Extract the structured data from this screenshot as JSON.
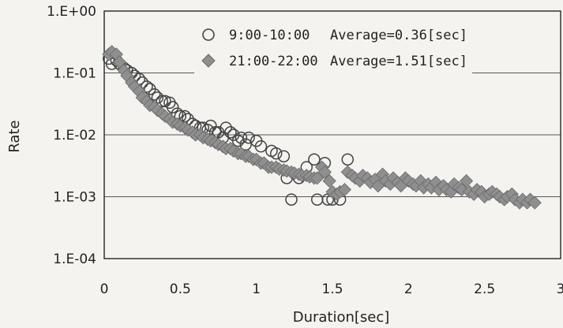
{
  "chart_data": {
    "type": "scatter",
    "title": "",
    "xlabel": "Duration[sec]",
    "ylabel": "Rate",
    "xlim": [
      0,
      3
    ],
    "ylim": [
      0.0001,
      1
    ],
    "yscale": "log",
    "grid": "horizontal",
    "legend_position": "top-right",
    "x_ticks": [
      {
        "value": 0,
        "label": "0"
      },
      {
        "value": 0.5,
        "label": "0.5"
      },
      {
        "value": 1,
        "label": "1"
      },
      {
        "value": 1.5,
        "label": "1.5"
      },
      {
        "value": 2,
        "label": "2"
      },
      {
        "value": 2.5,
        "label": "2.5"
      },
      {
        "value": 3,
        "label": "3"
      }
    ],
    "y_ticks": [
      {
        "value": 1,
        "label": "1.E+00"
      },
      {
        "value": 0.1,
        "label": "1.E-01"
      },
      {
        "value": 0.01,
        "label": "1.E-02"
      },
      {
        "value": 0.001,
        "label": "1.E-03"
      },
      {
        "value": 0.0001,
        "label": "1.E-04"
      }
    ],
    "series": [
      {
        "name": "9:00-10:00",
        "annotation": "Average=0.36[sec]",
        "marker": "circle",
        "color": "#444444",
        "points": [
          [
            0.03,
            0.17
          ],
          [
            0.05,
            0.14
          ],
          [
            0.08,
            0.16
          ],
          [
            0.1,
            0.14
          ],
          [
            0.13,
            0.12
          ],
          [
            0.15,
            0.11
          ],
          [
            0.18,
            0.1
          ],
          [
            0.2,
            0.09
          ],
          [
            0.23,
            0.08
          ],
          [
            0.25,
            0.07
          ],
          [
            0.28,
            0.06
          ],
          [
            0.3,
            0.055
          ],
          [
            0.33,
            0.045
          ],
          [
            0.35,
            0.04
          ],
          [
            0.38,
            0.035
          ],
          [
            0.4,
            0.035
          ],
          [
            0.43,
            0.033
          ],
          [
            0.45,
            0.028
          ],
          [
            0.48,
            0.022
          ],
          [
            0.5,
            0.02
          ],
          [
            0.53,
            0.02
          ],
          [
            0.55,
            0.018
          ],
          [
            0.58,
            0.015
          ],
          [
            0.6,
            0.014
          ],
          [
            0.63,
            0.013
          ],
          [
            0.65,
            0.013
          ],
          [
            0.68,
            0.012
          ],
          [
            0.7,
            0.014
          ],
          [
            0.73,
            0.011
          ],
          [
            0.75,
            0.011
          ],
          [
            0.78,
            0.009
          ],
          [
            0.8,
            0.013
          ],
          [
            0.83,
            0.011
          ],
          [
            0.85,
            0.01
          ],
          [
            0.88,
            0.008
          ],
          [
            0.9,
            0.009
          ],
          [
            0.93,
            0.007
          ],
          [
            0.95,
            0.009
          ],
          [
            1.0,
            0.008
          ],
          [
            1.03,
            0.0065
          ],
          [
            1.1,
            0.0055
          ],
          [
            1.13,
            0.005
          ],
          [
            1.18,
            0.0045
          ],
          [
            1.2,
            0.002
          ],
          [
            1.23,
            0.0009
          ],
          [
            1.28,
            0.002
          ],
          [
            1.33,
            0.003
          ],
          [
            1.38,
            0.004
          ],
          [
            1.4,
            0.0009
          ],
          [
            1.45,
            0.0035
          ],
          [
            1.47,
            0.0009
          ],
          [
            1.5,
            0.0009
          ],
          [
            1.55,
            0.0009
          ],
          [
            1.6,
            0.004
          ]
        ]
      },
      {
        "name": "21:00-22:00",
        "annotation": "Average=1.51[sec]",
        "marker": "diamond",
        "color": "#8f8f8f",
        "points": [
          [
            0.03,
            0.2
          ],
          [
            0.05,
            0.22
          ],
          [
            0.08,
            0.2
          ],
          [
            0.1,
            0.15
          ],
          [
            0.13,
            0.11
          ],
          [
            0.15,
            0.09
          ],
          [
            0.18,
            0.07
          ],
          [
            0.2,
            0.06
          ],
          [
            0.23,
            0.05
          ],
          [
            0.25,
            0.04
          ],
          [
            0.28,
            0.035
          ],
          [
            0.3,
            0.03
          ],
          [
            0.33,
            0.028
          ],
          [
            0.35,
            0.025
          ],
          [
            0.38,
            0.022
          ],
          [
            0.4,
            0.02
          ],
          [
            0.43,
            0.018
          ],
          [
            0.45,
            0.016
          ],
          [
            0.48,
            0.015
          ],
          [
            0.5,
            0.014
          ],
          [
            0.53,
            0.013
          ],
          [
            0.55,
            0.012
          ],
          [
            0.58,
            0.011
          ],
          [
            0.6,
            0.01
          ],
          [
            0.63,
            0.01
          ],
          [
            0.65,
            0.009
          ],
          [
            0.68,
            0.0085
          ],
          [
            0.7,
            0.008
          ],
          [
            0.73,
            0.0075
          ],
          [
            0.75,
            0.007
          ],
          [
            0.78,
            0.0065
          ],
          [
            0.8,
            0.006
          ],
          [
            0.83,
            0.006
          ],
          [
            0.85,
            0.0055
          ],
          [
            0.88,
            0.005
          ],
          [
            0.9,
            0.005
          ],
          [
            0.93,
            0.0045
          ],
          [
            0.95,
            0.0045
          ],
          [
            0.98,
            0.004
          ],
          [
            1.0,
            0.004
          ],
          [
            1.03,
            0.0035
          ],
          [
            1.05,
            0.0035
          ],
          [
            1.08,
            0.003
          ],
          [
            1.1,
            0.003
          ],
          [
            1.13,
            0.003
          ],
          [
            1.15,
            0.0028
          ],
          [
            1.18,
            0.0027
          ],
          [
            1.2,
            0.0026
          ],
          [
            1.23,
            0.0025
          ],
          [
            1.25,
            0.0024
          ],
          [
            1.28,
            0.0023
          ],
          [
            1.3,
            0.0022
          ],
          [
            1.33,
            0.0022
          ],
          [
            1.35,
            0.0021
          ],
          [
            1.38,
            0.002
          ],
          [
            1.4,
            0.002
          ],
          [
            1.43,
            0.003
          ],
          [
            1.45,
            0.0025
          ],
          [
            1.48,
            0.0018
          ],
          [
            1.5,
            0.0012
          ],
          [
            1.53,
            0.0011
          ],
          [
            1.55,
            0.0012
          ],
          [
            1.58,
            0.0013
          ],
          [
            1.6,
            0.0025
          ],
          [
            1.63,
            0.0022
          ],
          [
            1.65,
            0.002
          ],
          [
            1.68,
            0.0018
          ],
          [
            1.7,
            0.0022
          ],
          [
            1.73,
            0.002
          ],
          [
            1.75,
            0.0017
          ],
          [
            1.78,
            0.0019
          ],
          [
            1.8,
            0.0015
          ],
          [
            1.83,
            0.0023
          ],
          [
            1.85,
            0.0018
          ],
          [
            1.88,
            0.0016
          ],
          [
            1.9,
            0.002
          ],
          [
            1.93,
            0.0017
          ],
          [
            1.95,
            0.0015
          ],
          [
            1.98,
            0.002
          ],
          [
            2.0,
            0.0018
          ],
          [
            2.03,
            0.0016
          ],
          [
            2.05,
            0.0015
          ],
          [
            2.08,
            0.0018
          ],
          [
            2.1,
            0.0014
          ],
          [
            2.13,
            0.0016
          ],
          [
            2.15,
            0.0014
          ],
          [
            2.18,
            0.0017
          ],
          [
            2.2,
            0.0013
          ],
          [
            2.23,
            0.0015
          ],
          [
            2.25,
            0.0013
          ],
          [
            2.28,
            0.0012
          ],
          [
            2.3,
            0.0016
          ],
          [
            2.33,
            0.0014
          ],
          [
            2.35,
            0.0013
          ],
          [
            2.38,
            0.0018
          ],
          [
            2.4,
            0.0012
          ],
          [
            2.43,
            0.0011
          ],
          [
            2.45,
            0.0013
          ],
          [
            2.48,
            0.0012
          ],
          [
            2.5,
            0.001
          ],
          [
            2.53,
            0.0011
          ],
          [
            2.55,
            0.0012
          ],
          [
            2.58,
            0.0011
          ],
          [
            2.6,
            0.001
          ],
          [
            2.63,
            0.0009
          ],
          [
            2.65,
            0.001
          ],
          [
            2.68,
            0.0011
          ],
          [
            2.7,
            0.0009
          ],
          [
            2.73,
            0.0008
          ],
          [
            2.75,
            0.0009
          ],
          [
            2.78,
            0.0008
          ],
          [
            2.8,
            0.0009
          ],
          [
            2.83,
            0.0008
          ]
        ]
      }
    ]
  }
}
